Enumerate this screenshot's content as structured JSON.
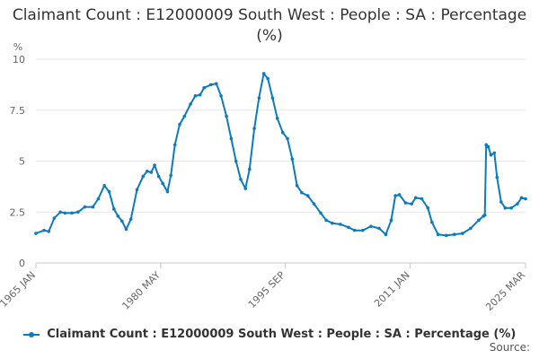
{
  "chart_data": {
    "type": "line",
    "title": "Claimant Count : E12000009 South West : People : SA : Percentage (%)",
    "ylabel": "%",
    "ylim": [
      0,
      10
    ],
    "yticks": [
      0,
      2.5,
      5,
      7.5,
      10
    ],
    "ytick_labels": [
      "0",
      "2.5",
      "5",
      "7.5",
      "10"
    ],
    "x_domain": [
      "1965-01",
      "2025-03"
    ],
    "xticks": [
      {
        "label": "1965 JAN",
        "date": "1965-01"
      },
      {
        "label": "1980 MAY",
        "date": "1980-05"
      },
      {
        "label": "1995 SEP",
        "date": "1995-09"
      },
      {
        "label": "2011 JAN",
        "date": "2011-01"
      },
      {
        "label": "2025 MAR",
        "date": "2025-03"
      }
    ],
    "grid": true,
    "legend_position": "bottom",
    "series": [
      {
        "name": "Claimant Count : E12000009 South West : People : SA : Percentage (%)",
        "color": "#0d7bbf",
        "points": [
          [
            "1965-01",
            1.45
          ],
          [
            "1966-01",
            1.6
          ],
          [
            "1966-08",
            1.55
          ],
          [
            "1967-04",
            2.2
          ],
          [
            "1968-01",
            2.5
          ],
          [
            "1968-08",
            2.45
          ],
          [
            "1969-06",
            2.45
          ],
          [
            "1970-03",
            2.5
          ],
          [
            "1971-01",
            2.75
          ],
          [
            "1972-01",
            2.75
          ],
          [
            "1972-09",
            3.15
          ],
          [
            "1973-06",
            3.8
          ],
          [
            "1974-01",
            3.5
          ],
          [
            "1974-08",
            2.65
          ],
          [
            "1975-02",
            2.3
          ],
          [
            "1975-08",
            2.05
          ],
          [
            "1976-02",
            1.65
          ],
          [
            "1976-09",
            2.15
          ],
          [
            "1977-06",
            3.6
          ],
          [
            "1978-03",
            4.25
          ],
          [
            "1978-09",
            4.5
          ],
          [
            "1979-03",
            4.45
          ],
          [
            "1979-08",
            4.8
          ],
          [
            "1980-02",
            4.25
          ],
          [
            "1980-08",
            3.9
          ],
          [
            "1981-03",
            3.5
          ],
          [
            "1981-08",
            4.3
          ],
          [
            "1982-02",
            5.8
          ],
          [
            "1982-09",
            6.8
          ],
          [
            "1983-04",
            7.2
          ],
          [
            "1984-01",
            7.8
          ],
          [
            "1984-08",
            8.2
          ],
          [
            "1985-03",
            8.25
          ],
          [
            "1985-09",
            8.6
          ],
          [
            "1986-07",
            8.75
          ],
          [
            "1987-03",
            8.8
          ],
          [
            "1987-10",
            8.2
          ],
          [
            "1988-06",
            7.2
          ],
          [
            "1989-01",
            6.1
          ],
          [
            "1989-08",
            5.0
          ],
          [
            "1990-03",
            4.1
          ],
          [
            "1990-10",
            3.65
          ],
          [
            "1991-04",
            4.6
          ],
          [
            "1991-11",
            6.6
          ],
          [
            "1992-06",
            8.1
          ],
          [
            "1993-01",
            9.3
          ],
          [
            "1993-07",
            9.05
          ],
          [
            "1994-02",
            8.1
          ],
          [
            "1994-09",
            7.1
          ],
          [
            "1995-05",
            6.4
          ],
          [
            "1995-12",
            6.1
          ],
          [
            "1996-07",
            5.1
          ],
          [
            "1997-02",
            3.8
          ],
          [
            "1997-09",
            3.45
          ],
          [
            "1998-06",
            3.3
          ],
          [
            "1999-03",
            2.9
          ],
          [
            "2000-01",
            2.45
          ],
          [
            "2000-09",
            2.1
          ],
          [
            "2001-06",
            1.95
          ],
          [
            "2002-06",
            1.9
          ],
          [
            "2003-06",
            1.75
          ],
          [
            "2004-03",
            1.6
          ],
          [
            "2005-03",
            1.6
          ],
          [
            "2006-03",
            1.8
          ],
          [
            "2007-03",
            1.7
          ],
          [
            "2008-01",
            1.4
          ],
          [
            "2008-09",
            2.1
          ],
          [
            "2009-03",
            3.3
          ],
          [
            "2009-09",
            3.35
          ],
          [
            "2010-06",
            2.95
          ],
          [
            "2011-03",
            2.9
          ],
          [
            "2011-09",
            3.2
          ],
          [
            "2012-06",
            3.15
          ],
          [
            "2013-03",
            2.7
          ],
          [
            "2013-09",
            2.0
          ],
          [
            "2014-06",
            1.4
          ],
          [
            "2015-06",
            1.35
          ],
          [
            "2016-06",
            1.4
          ],
          [
            "2017-06",
            1.45
          ],
          [
            "2018-06",
            1.7
          ],
          [
            "2019-06",
            2.1
          ],
          [
            "2020-01",
            2.3
          ],
          [
            "2020-03",
            2.35
          ],
          [
            "2020-05",
            5.8
          ],
          [
            "2020-08",
            5.7
          ],
          [
            "2020-12",
            5.3
          ],
          [
            "2021-05",
            5.4
          ],
          [
            "2021-09",
            4.2
          ],
          [
            "2022-03",
            3.0
          ],
          [
            "2022-09",
            2.7
          ],
          [
            "2023-06",
            2.7
          ],
          [
            "2024-03",
            2.9
          ],
          [
            "2024-09",
            3.2
          ],
          [
            "2025-03",
            3.15
          ]
        ]
      }
    ]
  },
  "legend": {
    "label": "Claimant Count : E12000009 South West : People : SA : Percentage (%)"
  },
  "source_label": "Source:"
}
